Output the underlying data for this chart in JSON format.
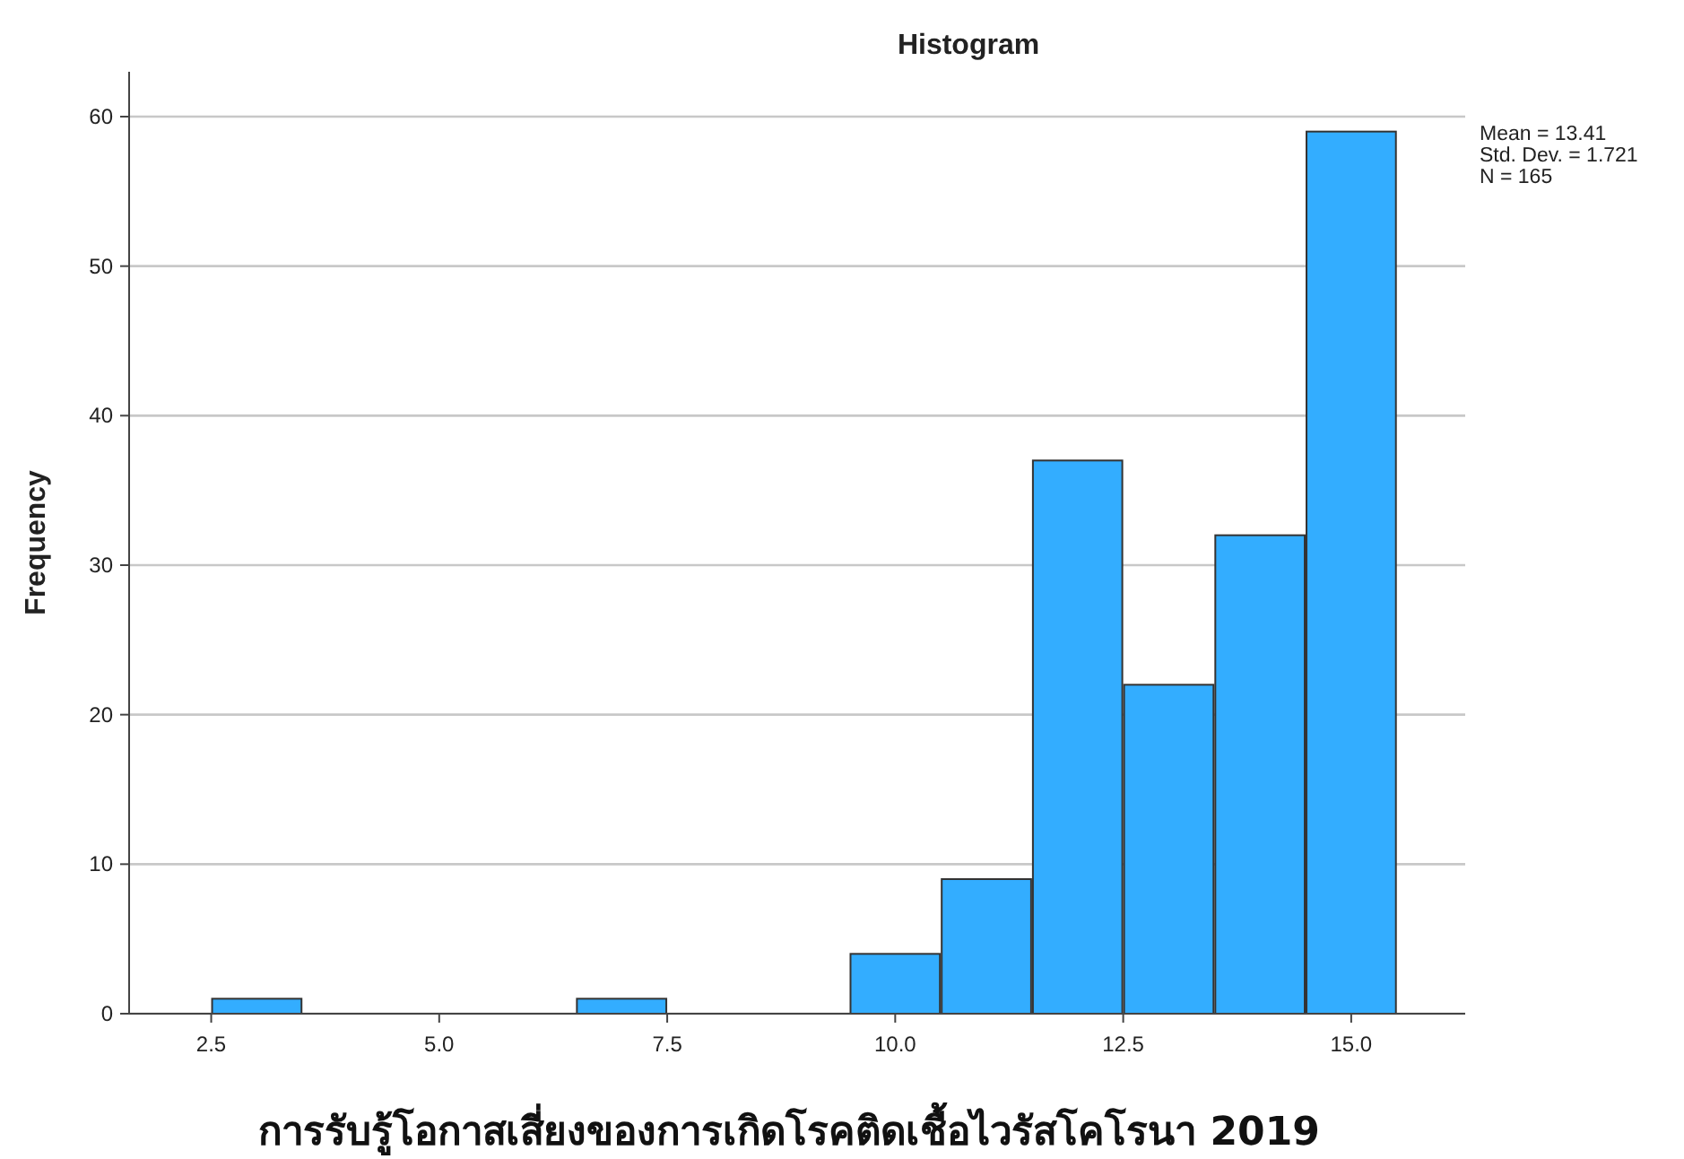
{
  "chart_data": {
    "type": "histogram",
    "title": "Histogram",
    "xlabel": "การรับรู้โอกาสเสี่ยงของการเกิดโรคติดเชื้อไวรัสโคโรนา 2019",
    "ylabel": "Frequency",
    "bins": [
      2.5,
      3.5,
      4.5,
      5.5,
      6.5,
      7.5,
      8.5,
      9.5,
      10.5,
      11.5,
      12.5,
      13.5,
      14.5,
      15.5
    ],
    "values": [
      1,
      0,
      0,
      0,
      1,
      0,
      0,
      4,
      9,
      37,
      22,
      32,
      59
    ],
    "color": "#33adff",
    "xlim": [
      1.6,
      16.25
    ],
    "ylim": [
      0,
      63
    ],
    "xticks": [
      {
        "value": 2.5,
        "label": "2.5"
      },
      {
        "value": 5,
        "label": "5.0"
      },
      {
        "value": 7.5,
        "label": "7.5"
      },
      {
        "value": 10,
        "label": "10.0"
      },
      {
        "value": 12.5,
        "label": "12.5"
      },
      {
        "value": 15,
        "label": "15.0"
      }
    ],
    "yticks": [
      0,
      10,
      20,
      30,
      40,
      50,
      60
    ],
    "grid": "y",
    "annotations": [
      "Mean = 13.41",
      "Std. Dev. = 1.721",
      "N = 165"
    ]
  }
}
